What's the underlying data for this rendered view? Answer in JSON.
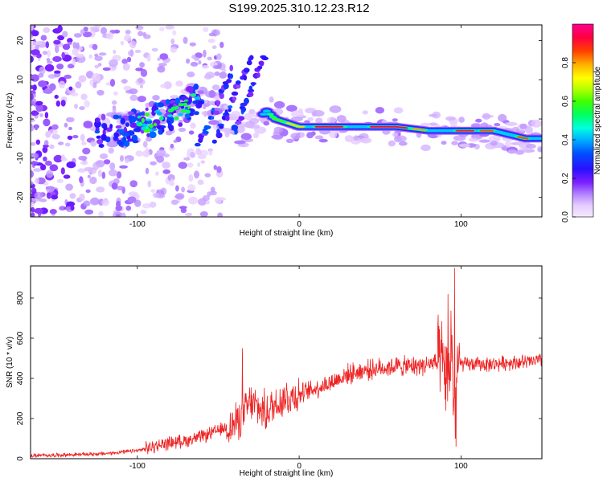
{
  "title": "S199.2025.310.12.23.R12",
  "chart_data": [
    {
      "type": "heatmap",
      "title": "S199.2025.310.12.23.R12",
      "xlabel": "Height of straight line (km)",
      "ylabel": "Frequency (Hz)",
      "xlim": [
        -166,
        150
      ],
      "ylim": [
        -25,
        24
      ],
      "xticks": [
        -100,
        0,
        100
      ],
      "yticks": [
        -20,
        -10,
        0,
        10,
        20
      ],
      "colorbar": {
        "label": "Normalized spectral amplitude",
        "range": [
          0,
          1
        ],
        "ticks": [
          0.0,
          0.2,
          0.4,
          0.6,
          0.8
        ],
        "tick_labels": [
          "0.0",
          "0.2",
          "0.4",
          "0.6",
          "0.8"
        ]
      },
      "ridge": {
        "description_points_x_km": [
          -110,
          -95,
          -80,
          -70,
          -62,
          -45,
          -35,
          -25,
          -20,
          -15,
          0,
          15,
          40,
          60,
          80,
          90,
          100,
          120,
          140,
          150
        ],
        "description_points_f_hz": [
          -3,
          -1,
          1,
          3,
          5,
          0,
          -3,
          0,
          2,
          0,
          -2,
          -2,
          -2,
          -2,
          -3,
          -3,
          -3,
          -3,
          -5,
          -5
        ],
        "peak_amplitude": 0.95
      }
    },
    {
      "type": "line",
      "xlabel": "Height of straight line (km)",
      "ylabel": "SNR (10 * v/v)",
      "xlim": [
        -166,
        150
      ],
      "ylim": [
        0,
        960
      ],
      "xticks": [
        -100,
        0,
        100
      ],
      "yticks": [
        0,
        200,
        400,
        600,
        800
      ],
      "series": [
        {
          "name": "SNR",
          "color": "#ee2222",
          "x": [
            -166,
            -140,
            -120,
            -100,
            -90,
            -80,
            -70,
            -60,
            -50,
            -40,
            -35,
            -30,
            -25,
            -20,
            -15,
            -10,
            -5,
            0,
            10,
            20,
            30,
            40,
            50,
            60,
            70,
            80,
            85,
            90,
            92,
            94,
            96,
            98,
            100,
            110,
            120,
            130,
            140,
            150
          ],
          "values": [
            15,
            20,
            25,
            40,
            60,
            80,
            90,
            110,
            140,
            170,
            220,
            280,
            250,
            230,
            270,
            300,
            310,
            320,
            350,
            380,
            420,
            440,
            450,
            460,
            460,
            470,
            480,
            450,
            300,
            600,
            200,
            480,
            470,
            470,
            470,
            480,
            480,
            490
          ],
          "spikes": [
            {
              "x": -35,
              "value": 550
            },
            {
              "x": 92,
              "value": 820
            },
            {
              "x": 96,
              "value": 950
            },
            {
              "x": 97,
              "value": 60
            }
          ]
        }
      ]
    }
  ]
}
